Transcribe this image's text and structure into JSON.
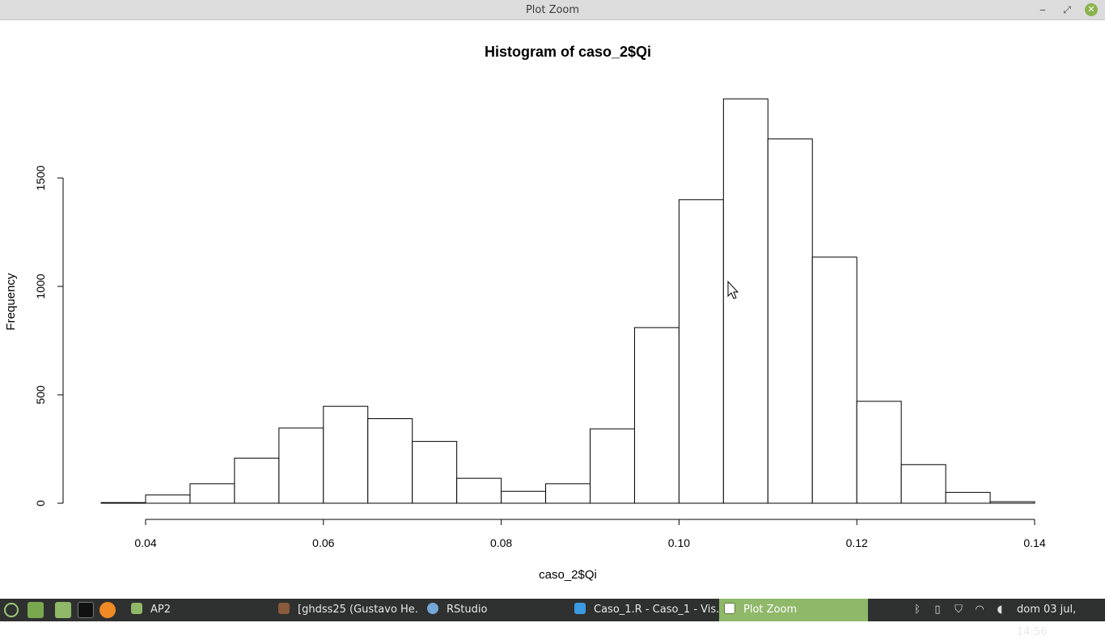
{
  "window": {
    "title": "Plot Zoom",
    "minimize_glyph": "‒",
    "maximize_glyph": "⤢",
    "close_glyph": "✕"
  },
  "chart_data": {
    "type": "bar",
    "title": "Histogram of caso_2$Qi",
    "xlabel": "caso_2$Qi",
    "ylabel": "Frequency",
    "bins": [
      {
        "from": 0.035,
        "to": 0.04,
        "value": 3
      },
      {
        "from": 0.04,
        "to": 0.045,
        "value": 38
      },
      {
        "from": 0.045,
        "to": 0.05,
        "value": 90
      },
      {
        "from": 0.05,
        "to": 0.055,
        "value": 208
      },
      {
        "from": 0.055,
        "to": 0.06,
        "value": 347
      },
      {
        "from": 0.06,
        "to": 0.065,
        "value": 447
      },
      {
        "from": 0.065,
        "to": 0.07,
        "value": 390
      },
      {
        "from": 0.07,
        "to": 0.075,
        "value": 285
      },
      {
        "from": 0.075,
        "to": 0.08,
        "value": 115
      },
      {
        "from": 0.08,
        "to": 0.085,
        "value": 55
      },
      {
        "from": 0.085,
        "to": 0.09,
        "value": 90
      },
      {
        "from": 0.09,
        "to": 0.095,
        "value": 343
      },
      {
        "from": 0.095,
        "to": 0.1,
        "value": 810
      },
      {
        "from": 0.1,
        "to": 0.105,
        "value": 1400
      },
      {
        "from": 0.105,
        "to": 0.11,
        "value": 1865
      },
      {
        "from": 0.11,
        "to": 0.115,
        "value": 1680
      },
      {
        "from": 0.115,
        "to": 0.12,
        "value": 1135
      },
      {
        "from": 0.12,
        "to": 0.125,
        "value": 470
      },
      {
        "from": 0.125,
        "to": 0.13,
        "value": 178
      },
      {
        "from": 0.13,
        "to": 0.135,
        "value": 50
      },
      {
        "from": 0.135,
        "to": 0.14,
        "value": 7
      }
    ],
    "xticks": [
      0.04,
      0.06,
      0.08,
      0.1,
      0.12,
      0.14
    ],
    "xtick_labels": [
      "0.04",
      "0.06",
      "0.08",
      "0.10",
      "0.12",
      "0.14"
    ],
    "yticks": [
      0,
      500,
      1000,
      1500
    ],
    "ytick_labels": [
      "0",
      "500",
      "1000",
      "1500"
    ],
    "xlim": [
      0.035,
      0.14
    ],
    "ylim": [
      0,
      1865
    ],
    "grid": false
  },
  "taskbar": {
    "launchers": [
      "menu-icon",
      "show-desktop-icon",
      "files-icon",
      "terminal-icon",
      "firefox-icon"
    ],
    "tasks": [
      {
        "label": "AP2",
        "icon": "folder-icon",
        "color": "#8fb869"
      },
      {
        "label": "[ghdss25 (Gustavo He…",
        "icon": "browser-icon",
        "color": "#8a5a3c"
      },
      {
        "label": "RStudio",
        "icon": "rstudio-icon",
        "color": "#75a7d8"
      },
      {
        "label": "Caso_1.R - Caso_1 - Vis…",
        "icon": "vscode-icon",
        "color": "#3b9ae1"
      },
      {
        "label": "Plot Zoom",
        "icon": "window-icon",
        "color": "#ffffff",
        "active": true
      }
    ],
    "clock": "dom 03 jul, 14:56"
  }
}
